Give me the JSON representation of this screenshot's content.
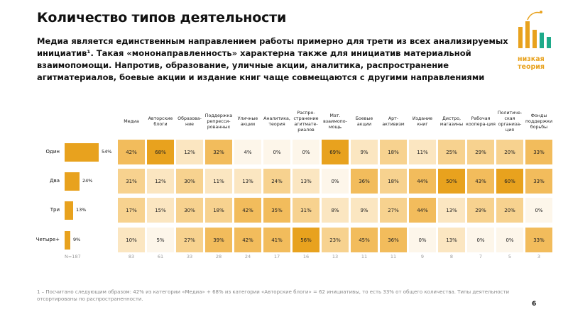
{
  "title": "Количество типов деятельности",
  "description": "Медиа является единственным направлением работы примерно для трети из всех анализируемых инициатив¹. Такая «мононаправленность» характерна также для инициатив материальной взаимопомощи. Напротив, образование, уличные акции, аналитика, распространение агитматериалов, боевые акции и издание книг чаще совмещаются с другими направлениями",
  "logo": {
    "line1": "низкая",
    "line2": "теория",
    "icon": "bar-chart-logo-icon",
    "color": "#e8a21e"
  },
  "colors": {
    "accent": "#e8a21e",
    "cell_scale": [
      "#fdf6ea",
      "#fbe6c1",
      "#f7d28f",
      "#f2bc5c",
      "#e8a21e"
    ]
  },
  "chart_data": {
    "type": "table",
    "title": "Количество типов деятельности",
    "total_label": "N=187",
    "rows": [
      "Один",
      "Два",
      "Три",
      "Четыре+"
    ],
    "row_share_labels": [
      "54%",
      "24%",
      "13%",
      "9%"
    ],
    "row_share": [
      54,
      24,
      13,
      9
    ],
    "columns": [
      "Медиа",
      "Авторские блоги",
      "Образова-ние",
      "Поддержка репресси-рованных",
      "Уличные акции",
      "Аналитика, теория",
      "Распро-странение агитмате-риалов",
      "Мат. взаимопо-мощь",
      "Боевые акции",
      "Арт-активизм",
      "Издание книг",
      "Дистро, магазины",
      "Рабочая коопера-ция",
      "Политиче-ская организа-ция",
      "Фонды поддержки борьбы"
    ],
    "column_counts": [
      "83",
      "61",
      "33",
      "28",
      "24",
      "17",
      "16",
      "13",
      "11",
      "11",
      "9",
      "8",
      "7",
      "5",
      "3"
    ],
    "values": [
      [
        "42%",
        "68%",
        "12%",
        "32%",
        "4%",
        "0%",
        "0%",
        "69%",
        "9%",
        "18%",
        "11%",
        "25%",
        "29%",
        "20%",
        "33%"
      ],
      [
        "31%",
        "12%",
        "30%",
        "11%",
        "13%",
        "24%",
        "13%",
        "0%",
        "36%",
        "18%",
        "44%",
        "50%",
        "43%",
        "60%",
        "33%"
      ],
      [
        "17%",
        "15%",
        "30%",
        "18%",
        "42%",
        "35%",
        "31%",
        "8%",
        "9%",
        "27%",
        "44%",
        "13%",
        "29%",
        "20%",
        "0%"
      ],
      [
        "10%",
        "5%",
        "27%",
        "39%",
        "42%",
        "41%",
        "56%",
        "23%",
        "45%",
        "36%",
        "0%",
        "13%",
        "0%",
        "0%",
        "33%"
      ]
    ]
  },
  "footnote": "1 – Посчитано следующим образом: 42% из категории «Медиа» + 68% из категории «Авторские блоги» = 62 инициативы, то есть 33% от общего количества. Типы деятельности отсортированы по распространенности.",
  "page_number": "6"
}
